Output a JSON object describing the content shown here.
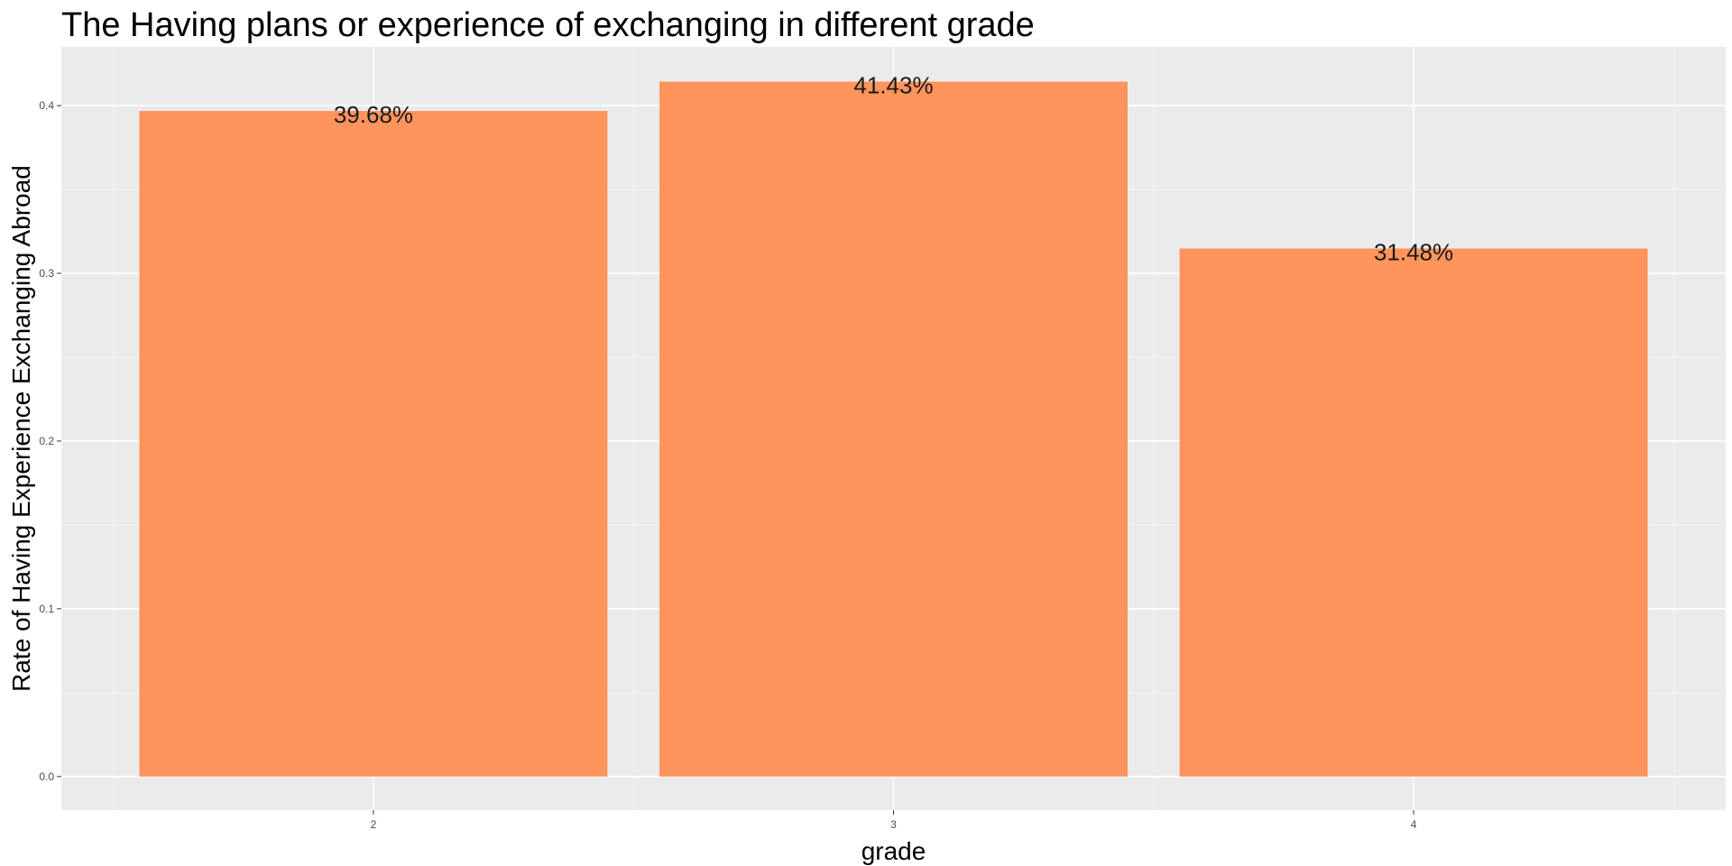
{
  "chart_data": {
    "type": "bar",
    "title": "The Having plans or experience of exchanging in different grade",
    "xlabel": "grade",
    "ylabel": "Rate of Having Experience Exchanging Abroad",
    "categories": [
      "2",
      "3",
      "4"
    ],
    "values": [
      0.3968,
      0.4143,
      0.3148
    ],
    "data_labels": [
      "39.68%",
      "41.43%",
      "31.48%"
    ],
    "ylim": [
      -0.02,
      0.435
    ],
    "yticks": [
      0.0,
      0.1,
      0.2,
      0.3,
      0.4
    ],
    "ytick_labels": [
      "0.0",
      "0.1",
      "0.2",
      "0.3",
      "0.4"
    ],
    "grid": true,
    "legend": "none",
    "colors": {
      "bar": "#FF945C",
      "panel": "#EBEBEB",
      "grid_major": "#FFFFFF",
      "tick_text": "#4D4D4D"
    }
  }
}
